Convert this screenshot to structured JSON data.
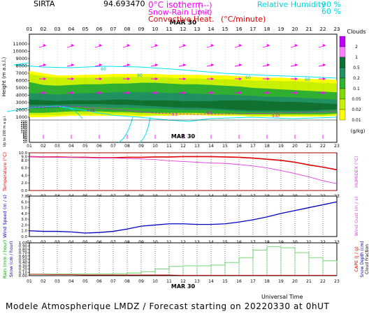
{
  "header": {
    "site": "SIRTA",
    "coords": "94.693470",
    "isotherm_label": "0°C isotherm",
    "isotherm_legend": "(---)",
    "snow_rain_label": "Snow-Rain Limit",
    "snow_rain_legend": "(---)",
    "convective_label": "Convective Heat.",
    "convective_legend": "(°C/minute)",
    "rh_label": "Relative Humidity",
    "rh_90": "90 %",
    "rh_60": "60 %"
  },
  "footer": {
    "title": "Modele Atmospherique LMDZ / Forecast starting on 20220330 at 0hUT",
    "time_label": "Universal Time"
  },
  "colors": {
    "grid": "#000000",
    "rh_line": "#00e5ee",
    "isotherm": "#ff00ff",
    "temperature": "#e00000",
    "humidex": "#e040e0",
    "wind_speed": "#0000c0",
    "rain": "#00cc00",
    "cloud_scale": [
      "#ffff00",
      "#c8f000",
      "#80d800",
      "#30b030",
      "#209060",
      "#107030",
      "#ff80ff",
      "#c000ff"
    ]
  },
  "chart_data": [
    {
      "type": "heatmap",
      "title": "Clouds",
      "date_label": "MAR 30",
      "x": [
        "01",
        "02",
        "03",
        "04",
        "05",
        "06",
        "07",
        "08",
        "09",
        "10",
        "11",
        "12",
        "13",
        "14",
        "15",
        "16",
        "17",
        "18",
        "19",
        "20",
        "21",
        "22",
        "23"
      ],
      "ylabel": "Height (m a.s.l.)",
      "ylabel_low": "Up to 200 m a.g.l.",
      "yticks_upper": [
        "11000",
        "10000",
        "9000",
        "8000",
        "7000",
        "6000",
        "5000",
        "4000",
        "3000",
        "2000",
        "1000"
      ],
      "yticks_lower": [
        "200",
        "180",
        "160",
        "140",
        "120",
        "100",
        "80",
        "60",
        "40",
        "20",
        "10"
      ],
      "colorbar_ticks": [
        "2",
        "1",
        "0.5",
        "0.2",
        "0.1",
        "0.05",
        "0.02",
        "0.01"
      ],
      "colorbar_unit": "(g/kg)",
      "rh_contour_labels": [
        "60",
        "90",
        "60",
        "90",
        "60"
      ],
      "convective_labels": [
        "0.08",
        "0.1",
        "0.1",
        "0.07"
      ],
      "cloud_layers": [
        {
          "level": 0.01,
          "bottom_m": 1200,
          "top_m": 7000
        },
        {
          "level": 0.05,
          "bottom_m": 1400,
          "top_m": 6200
        },
        {
          "level": 0.1,
          "bottom_m": 1600,
          "top_m": 5600
        },
        {
          "level": 0.2,
          "bottom_m": 1800,
          "top_m": 4300
        }
      ]
    },
    {
      "type": "line",
      "date_label": "MAR 30",
      "x": [
        "01",
        "02",
        "03",
        "04",
        "05",
        "06",
        "07",
        "08",
        "09",
        "10",
        "11",
        "12",
        "13",
        "14",
        "15",
        "16",
        "17",
        "18",
        "19",
        "20",
        "21",
        "22",
        "23"
      ],
      "ylabel": "Temperature (°C)",
      "ylabel_right": "HUMIDEX (°C)",
      "yticks": [
        "10.0",
        "9.0",
        "8.0",
        "6.0",
        "4.0",
        "2.0",
        "0.0"
      ],
      "ylim": [
        0,
        10
      ],
      "series": [
        {
          "name": "Temperature",
          "values": [
            9.0,
            8.9,
            8.9,
            8.8,
            8.8,
            8.7,
            8.7,
            8.8,
            8.8,
            8.9,
            8.9,
            9.0,
            9.0,
            9.0,
            8.9,
            8.8,
            8.6,
            8.3,
            8.0,
            7.5,
            6.8,
            6.2,
            5.5
          ]
        },
        {
          "name": "HUMIDEX",
          "values": [
            9.0,
            8.9,
            8.8,
            8.8,
            8.7,
            8.6,
            8.6,
            8.5,
            8.4,
            8.2,
            7.9,
            7.7,
            7.5,
            7.3,
            7.2,
            6.9,
            6.5,
            6.0,
            5.3,
            4.5,
            3.6,
            2.6,
            1.8
          ]
        }
      ]
    },
    {
      "type": "line",
      "date_label": "MAR 30",
      "x": [
        "01",
        "02",
        "03",
        "04",
        "05",
        "06",
        "07",
        "08",
        "09",
        "10",
        "11",
        "12",
        "13",
        "14",
        "15",
        "16",
        "17",
        "18",
        "19",
        "20",
        "21",
        "22",
        "23"
      ],
      "ylabel": "Wind Speed (m / s)",
      "ylabel_right": "Wind Gust (m / s)",
      "yticks": [
        "7.0",
        "6.0",
        "5.0",
        "4.0",
        "3.0",
        "2.0",
        "1.0",
        "0.0"
      ],
      "ylim": [
        0,
        7
      ],
      "series": [
        {
          "name": "Wind Speed",
          "values": [
            1.0,
            0.9,
            0.9,
            0.8,
            0.6,
            0.7,
            0.9,
            1.3,
            1.8,
            2.0,
            2.2,
            2.2,
            2.1,
            2.1,
            2.2,
            2.5,
            2.9,
            3.4,
            4.0,
            4.5,
            5.0,
            5.5,
            6.0
          ]
        }
      ]
    },
    {
      "type": "bar",
      "date_label": "MAR 30",
      "x": [
        "01",
        "02",
        "03",
        "04",
        "05",
        "06",
        "07",
        "08",
        "09",
        "10",
        "11",
        "12",
        "13",
        "14",
        "15",
        "16",
        "17",
        "18",
        "19",
        "20",
        "21",
        "22",
        "23"
      ],
      "ylabel": "Rain (mm / hour)",
      "ylabel2": "Snow (cm / hour)",
      "ylabel_right": "CAPE (J / g)",
      "ylabel_right2": "Snow Depth (cm)",
      "ylabel_right3": "Cloud Fraction",
      "yticks": [
        "1.00",
        "0.90",
        "0.80",
        "0.70",
        "0.60",
        "0.50",
        "0.40",
        "0.30",
        "0.20",
        "0.10",
        "0.00"
      ],
      "ylim": [
        0,
        1
      ],
      "series": [
        {
          "name": "Cloud Fraction",
          "values": [
            0.05,
            0.05,
            0.05,
            0.05,
            0.05,
            0.05,
            0.06,
            0.08,
            0.12,
            0.2,
            0.28,
            0.3,
            0.3,
            0.32,
            0.4,
            0.55,
            0.78,
            0.88,
            0.85,
            0.7,
            0.55,
            0.45,
            0.4
          ]
        },
        {
          "name": "Rain",
          "values": [
            0.04,
            0.04,
            0.03,
            0.03,
            0.02,
            0.02,
            0.02,
            0.02,
            0.02,
            0.02,
            0.02,
            0.01,
            0.01,
            0.01,
            0.01,
            0.01,
            0.01,
            0.01,
            0.01,
            0.01,
            0.01,
            0.01,
            0.01
          ]
        }
      ]
    }
  ]
}
